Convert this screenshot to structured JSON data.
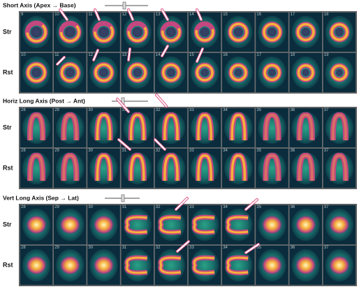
{
  "sections": [
    {
      "title": "Short Axis (Apex → Base)",
      "rows": [
        {
          "label": "Str",
          "frames": [
            "9",
            "10",
            "11",
            "12",
            "13",
            "14",
            "15",
            "16",
            "17",
            "18"
          ]
        },
        {
          "label": "Rst",
          "frames": [
            "10",
            "11",
            "12",
            "13",
            "14",
            "15",
            "16",
            "17",
            "18",
            "19"
          ]
        }
      ]
    },
    {
      "title": "Horiz Long Axis (Post → Ant)",
      "rows": [
        {
          "label": "Str",
          "frames": [
            "28",
            "29",
            "30",
            "31",
            "32",
            "33",
            "34",
            "35",
            "36",
            "37"
          ]
        },
        {
          "label": "Rst",
          "frames": [
            "28",
            "29",
            "30",
            "31",
            "32",
            "33",
            "34",
            "35",
            "36",
            "37"
          ]
        }
      ]
    },
    {
      "title": "Vert Long Axis (Sep → Lat)",
      "rows": [
        {
          "label": "Str",
          "frames": [
            "28",
            "29",
            "30",
            "31",
            "32",
            "33",
            "34",
            "35",
            "36",
            "37"
          ]
        },
        {
          "label": "Rst",
          "frames": [
            "28",
            "29",
            "30",
            "31",
            "32",
            "33",
            "34",
            "35",
            "36",
            "37"
          ]
        }
      ]
    }
  ]
}
